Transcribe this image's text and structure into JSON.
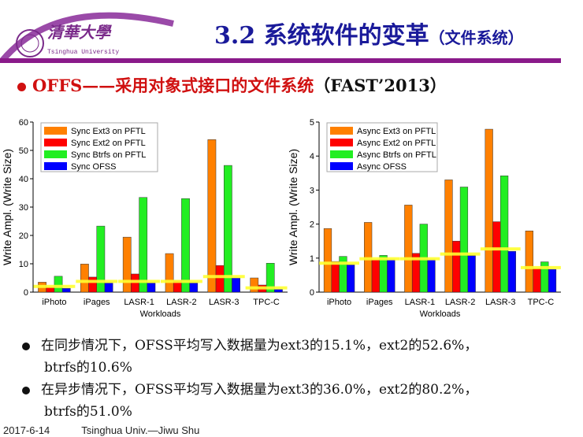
{
  "header": {
    "logo_cn": "清華大學",
    "logo_en": "Tsinghua University",
    "title": "3.2 系统软件的变革",
    "title_paren": "（文件系统）"
  },
  "subtitle": {
    "lead": "OFFS——",
    "red": "采用对象式接口的文件系统",
    "paren": "（FAST’2013）"
  },
  "colors": {
    "ext3": "#ff8000",
    "ext2": "#ff0000",
    "btrfs": "#22ee22",
    "ofss": "#0000ff",
    "highlight": "#ffff30",
    "title": "#1a1a9a",
    "accent": "#8a1a8a"
  },
  "chart_data": [
    {
      "type": "bar",
      "xlabel": "Workloads",
      "ylabel": "Write Ampl. (Write Size)",
      "ylim": [
        0,
        60
      ],
      "yticks": [
        0,
        10,
        20,
        30,
        40,
        50,
        60
      ],
      "legend": "top-left",
      "categories": [
        "iPhoto",
        "iPages",
        "LASR-1",
        "LASR-2",
        "LASR-3",
        "TPC-C"
      ],
      "series": [
        {
          "name": "Sync Ext3 on PFTL",
          "values": [
            3.5,
            9.9,
            19.4,
            13.6,
            53.8,
            5.0
          ]
        },
        {
          "name": "Sync Ext2 on PFTL",
          "values": [
            1.8,
            5.3,
            6.4,
            4.0,
            9.4,
            2.5
          ]
        },
        {
          "name": "Sync Btrfs on PFTL",
          "values": [
            5.6,
            23.3,
            33.4,
            33.0,
            44.7,
            10.2
          ]
        },
        {
          "name": "Sync OFSS",
          "values": [
            1.3,
            3.2,
            3.2,
            3.2,
            5.0,
            1.0
          ]
        }
      ],
      "highlight_lines": [
        2.0,
        3.8,
        3.8,
        3.8,
        5.5,
        1.5
      ]
    },
    {
      "type": "bar",
      "xlabel": "Workloads",
      "ylabel": "Write Ampl. (Write Size)",
      "ylim": [
        0,
        5
      ],
      "yticks": [
        0,
        1,
        2,
        3,
        4,
        5
      ],
      "legend": "top-left",
      "categories": [
        "iPhoto",
        "iPages",
        "LASR-1",
        "LASR-2",
        "LASR-3",
        "TPC-C"
      ],
      "series": [
        {
          "name": "Async Ext3 on PFTL",
          "values": [
            1.87,
            2.05,
            2.56,
            3.3,
            4.79,
            1.8
          ]
        },
        {
          "name": "Async Ext2 on PFTL",
          "values": [
            0.9,
            0.95,
            1.14,
            1.5,
            2.07,
            0.7
          ]
        },
        {
          "name": "Async Btrfs on PFTL",
          "values": [
            1.05,
            1.08,
            2.0,
            3.09,
            3.42,
            0.89
          ]
        },
        {
          "name": "Async OFSS",
          "values": [
            0.8,
            0.95,
            0.95,
            1.07,
            1.2,
            0.67
          ]
        }
      ],
      "highlight_lines": [
        0.85,
        0.98,
        0.98,
        1.12,
        1.27,
        0.72
      ]
    }
  ],
  "bullets": [
    {
      "line1": "在同步情况下，OFSS平均写入数据量为ext3的15.1%，ext2的52.6%，",
      "line2": "btrfs的10.6%"
    },
    {
      "line1": "在异步情况下，OFSS平均写入数据量为ext3的36.0%，ext2的80.2%，",
      "line2": "btrfs的51.0%"
    }
  ],
  "footer": {
    "date": "2017-6-14",
    "author": "Tsinghua Univ.—Jiwu Shu"
  }
}
